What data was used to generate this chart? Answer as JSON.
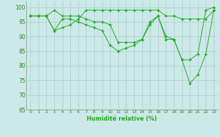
{
  "xlabel": "Humidité relative (%)",
  "background_color": "#cce8e8",
  "grid_color": "#aacccc",
  "line_color": "#22aa22",
  "xlim": [
    -0.5,
    23.5
  ],
  "ylim": [
    65,
    102
  ],
  "yticks": [
    65,
    70,
    75,
    80,
    85,
    90,
    95,
    100
  ],
  "xticks": [
    0,
    1,
    2,
    3,
    4,
    5,
    6,
    7,
    8,
    9,
    10,
    11,
    12,
    13,
    14,
    15,
    16,
    17,
    18,
    19,
    20,
    21,
    22,
    23
  ],
  "series": [
    [
      97,
      97,
      97,
      99,
      97,
      97,
      97,
      96,
      95,
      95,
      94,
      88,
      88,
      88,
      89,
      94,
      97,
      89,
      89,
      82,
      82,
      84,
      99,
      100
    ],
    [
      97,
      97,
      97,
      92,
      93,
      94,
      96,
      99,
      99,
      99,
      99,
      99,
      99,
      99,
      99,
      99,
      99,
      97,
      97,
      96,
      96,
      96,
      96,
      99
    ],
    [
      97,
      97,
      97,
      92,
      96,
      96,
      95,
      94,
      93,
      92,
      87,
      85,
      86,
      87,
      89,
      95,
      97,
      90,
      89,
      82,
      74,
      77,
      84,
      99
    ]
  ]
}
